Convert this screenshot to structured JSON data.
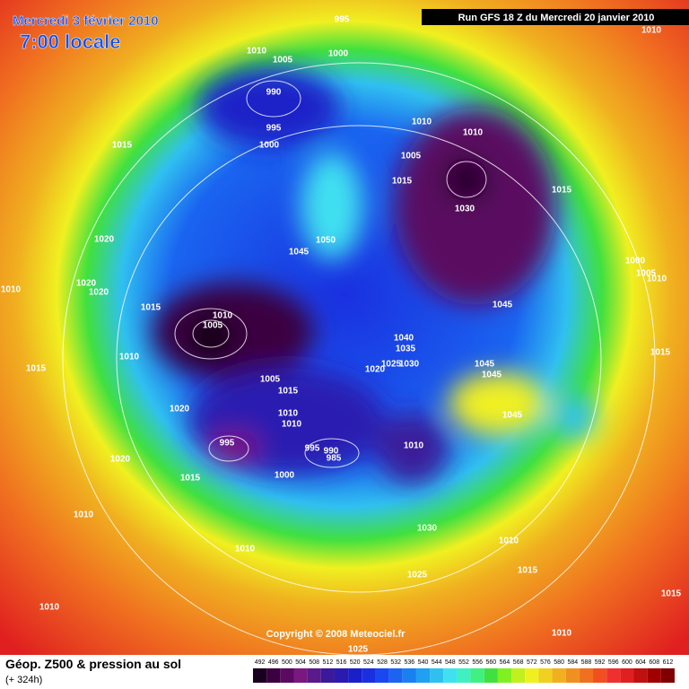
{
  "header": {
    "date": "Mercredi 3 février 2010",
    "time": "7:00 locale",
    "run": "Run GFS 18 Z du Mercredi 20 janvier 2010"
  },
  "map": {
    "isobar_labels": [
      "995",
      "1010",
      "1010",
      "1005",
      "1000",
      "990",
      "995",
      "1000",
      "1015",
      "1010",
      "1010",
      "1005",
      "1015",
      "1030",
      "1015",
      "1020",
      "1050",
      "1045",
      "1000",
      "1005",
      "1010",
      "1010",
      "1020",
      "1020",
      "1015",
      "1010",
      "1005",
      "1045",
      "1040",
      "1035",
      "1010",
      "1015",
      "1020",
      "1025",
      "1030",
      "1045",
      "1045",
      "1015",
      "1005",
      "1015",
      "1020",
      "1045",
      "1010",
      "1010",
      "995",
      "995",
      "990",
      "985",
      "1010",
      "1020",
      "1000",
      "1015",
      "1030",
      "1010",
      "1010",
      "1015",
      "1010",
      "1025",
      "1015",
      "1010",
      "1010",
      "1025"
    ],
    "copyright": "Copyright © 2008 Meteociel.fr"
  },
  "legend": {
    "title": "Géop. Z500 & pression au sol",
    "lead": "(+ 324h)",
    "values": [
      492,
      496,
      500,
      504,
      508,
      512,
      516,
      520,
      524,
      528,
      532,
      536,
      540,
      544,
      548,
      552,
      556,
      560,
      564,
      568,
      572,
      576,
      580,
      584,
      588,
      592,
      596,
      600,
      604,
      608,
      612
    ],
    "colors": [
      "#1a0020",
      "#3a0040",
      "#5a0a60",
      "#7a1880",
      "#5a1a8a",
      "#3a1a9a",
      "#2a1ab0",
      "#1a20c8",
      "#1a30e0",
      "#1a48f0",
      "#1a64f0",
      "#1a80f0",
      "#20a0f0",
      "#30c0f0",
      "#40e0f0",
      "#40f0c0",
      "#40f080",
      "#40e040",
      "#80f020",
      "#c0f020",
      "#f0f020",
      "#f0d020",
      "#f0b020",
      "#f09020",
      "#f07020",
      "#f05020",
      "#f03030",
      "#e02020",
      "#c01010",
      "#a00000",
      "#800000"
    ]
  }
}
